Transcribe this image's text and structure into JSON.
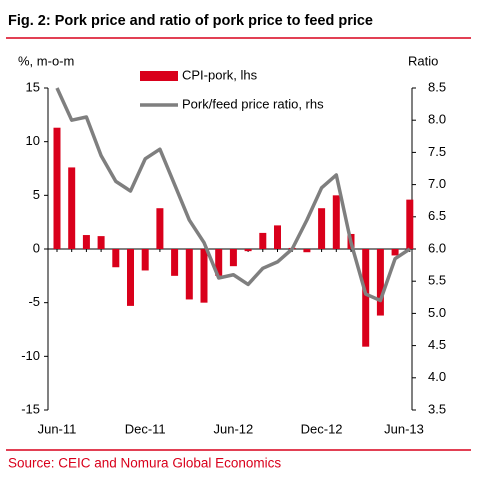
{
  "chart_data": {
    "type": "bar_line",
    "title": "Fig. 2: Pork price and ratio of pork price to feed price",
    "ylabel": "%, m-o-m",
    "y2label": "Ratio",
    "source": "Source: CEIC and Nomura Global Economics",
    "categories": [
      "Jun-11",
      null,
      null,
      null,
      null,
      null,
      "Dec-11",
      null,
      null,
      null,
      null,
      null,
      "Jun-12",
      null,
      null,
      null,
      null,
      null,
      "Dec-12",
      null,
      null,
      null,
      null,
      null,
      "Jun-13"
    ],
    "series": [
      {
        "name": "CPI-pork, lhs",
        "type": "bar",
        "color": "#d9001b",
        "axis": "y",
        "values": [
          11.3,
          7.6,
          1.3,
          1.2,
          -1.7,
          -5.3,
          -2.0,
          3.8,
          -2.5,
          -4.7,
          -5.0,
          -2.5,
          -1.6,
          -0.2,
          1.5,
          2.2,
          0.1,
          -0.3,
          3.8,
          5.0,
          1.4,
          -9.1,
          -6.2,
          -0.6,
          4.6
        ]
      },
      {
        "name": "Pork/feed price ratio, rhs",
        "type": "line",
        "color": "#7f7f7f",
        "axis": "y2",
        "values": [
          8.5,
          8.0,
          8.05,
          7.45,
          7.05,
          6.9,
          7.4,
          7.55,
          7.0,
          6.45,
          6.1,
          5.55,
          5.6,
          5.45,
          5.7,
          5.8,
          6.0,
          6.45,
          6.95,
          7.15,
          6.1,
          5.3,
          5.2,
          5.85,
          6.0
        ]
      }
    ],
    "ylim": [
      -15,
      15
    ],
    "yticks": [
      -15,
      -10,
      -5,
      0,
      5,
      10,
      15
    ],
    "y2lim": [
      3.5,
      8.5
    ],
    "y2ticks": [
      3.5,
      {
        "value": 4,
        "label": "4.0"
      },
      4.5,
      {
        "value": 5,
        "label": "5.0"
      },
      5.5,
      {
        "value": 6,
        "label": "6.0"
      },
      6.5,
      {
        "value": 7,
        "label": "7.0"
      },
      7.5,
      {
        "value": 8,
        "label": "8.0"
      },
      8.5
    ]
  }
}
